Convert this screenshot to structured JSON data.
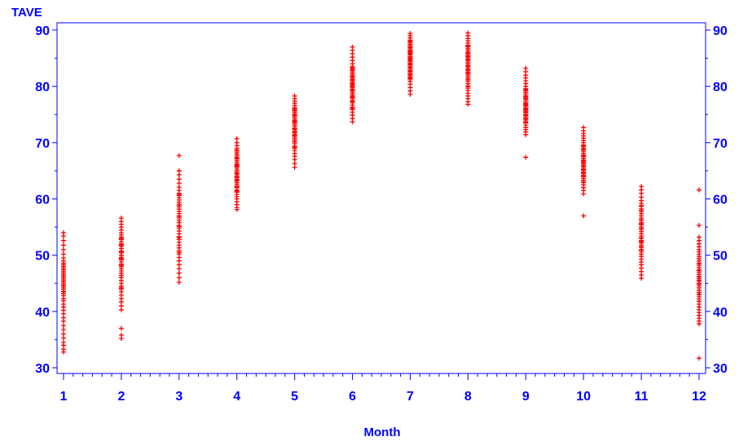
{
  "chart_data": {
    "type": "scatter",
    "title": "",
    "xlabel": "Month",
    "ylabel": "TAVE",
    "xlim": [
      1,
      12
    ],
    "ylim": [
      30,
      90
    ],
    "x_ticks": [
      1,
      2,
      3,
      4,
      5,
      6,
      7,
      8,
      9,
      10,
      11,
      12
    ],
    "y_ticks": [
      30,
      40,
      50,
      60,
      70,
      80,
      90
    ],
    "grid": false,
    "legend": "none",
    "marker": "plus",
    "colors": {
      "axis": "#0000ff",
      "points": "#ff0000"
    },
    "series": [
      {
        "x": [
          1,
          1,
          1,
          1,
          1,
          1,
          1,
          1,
          1,
          1,
          1,
          1,
          1,
          1,
          1,
          1,
          1,
          1,
          1,
          1,
          1,
          1,
          1,
          1,
          1,
          1,
          1,
          1,
          1,
          1,
          1,
          1,
          1,
          1,
          1,
          1,
          1,
          1,
          1,
          1,
          1,
          1,
          1,
          1,
          1
        ],
        "y": [
          32.8,
          33.3,
          34.0,
          34.5,
          35.3,
          36.0,
          36.8,
          37.5,
          38.3,
          38.9,
          39.6,
          40.2,
          40.8,
          41.3,
          41.9,
          42.3,
          42.8,
          43.2,
          43.6,
          44.0,
          44.3,
          44.7,
          45.0,
          45.3,
          45.6,
          45.9,
          46.2,
          46.5,
          46.8,
          47.1,
          47.4,
          47.7,
          48.0,
          48.3,
          48.6,
          49.0,
          49.5,
          50.2,
          51.0,
          51.8,
          52.6,
          53.4,
          54.0,
          43.5,
          44.6
        ]
      },
      {
        "x": [
          2,
          2,
          2,
          2,
          2,
          2,
          2,
          2,
          2,
          2,
          2,
          2,
          2,
          2,
          2,
          2,
          2,
          2,
          2,
          2,
          2,
          2,
          2,
          2,
          2,
          2,
          2,
          2,
          2,
          2,
          2,
          2,
          2,
          2,
          2,
          2,
          2,
          2,
          2,
          2,
          2,
          2,
          2,
          2,
          2
        ],
        "y": [
          35.2,
          35.8,
          37.0,
          40.3,
          41.0,
          41.7,
          42.3,
          42.9,
          43.5,
          44.0,
          44.5,
          45.0,
          45.5,
          46.0,
          46.4,
          46.8,
          47.2,
          47.6,
          48.0,
          48.4,
          48.8,
          49.2,
          49.6,
          50.0,
          50.4,
          50.8,
          51.2,
          51.6,
          52.0,
          52.4,
          52.8,
          53.2,
          53.6,
          54.0,
          54.5,
          55.0,
          55.5,
          56.0,
          56.6,
          48.2,
          49.4,
          50.6,
          51.8,
          53.0,
          44.2
        ]
      },
      {
        "x": [
          3,
          3,
          3,
          3,
          3,
          3,
          3,
          3,
          3,
          3,
          3,
          3,
          3,
          3,
          3,
          3,
          3,
          3,
          3,
          3,
          3,
          3,
          3,
          3,
          3,
          3,
          3,
          3,
          3,
          3,
          3,
          3,
          3,
          3,
          3,
          3,
          3,
          3,
          3,
          3,
          3,
          3,
          3,
          3,
          3
        ],
        "y": [
          45.2,
          46.0,
          46.8,
          47.6,
          48.3,
          49.0,
          49.6,
          50.2,
          50.8,
          51.3,
          51.8,
          52.3,
          52.8,
          53.3,
          53.8,
          54.3,
          54.8,
          55.3,
          55.8,
          56.2,
          56.6,
          57.0,
          57.4,
          57.8,
          58.2,
          58.6,
          59.0,
          59.4,
          59.8,
          60.2,
          60.6,
          61.0,
          61.5,
          62.1,
          62.8,
          63.5,
          64.3,
          65.0,
          67.7,
          53.1,
          55.1,
          56.9,
          58.9,
          60.8,
          50.5
        ]
      },
      {
        "x": [
          4,
          4,
          4,
          4,
          4,
          4,
          4,
          4,
          4,
          4,
          4,
          4,
          4,
          4,
          4,
          4,
          4,
          4,
          4,
          4,
          4,
          4,
          4,
          4,
          4,
          4,
          4,
          4,
          4,
          4,
          4,
          4,
          4,
          4,
          4,
          4,
          4,
          4,
          4,
          4,
          4,
          4,
          4,
          4,
          4
        ],
        "y": [
          58.1,
          58.5,
          59.0,
          59.5,
          60.0,
          60.4,
          60.8,
          61.2,
          61.6,
          62.0,
          62.3,
          62.6,
          62.9,
          63.2,
          63.5,
          63.8,
          64.1,
          64.4,
          64.7,
          65.0,
          65.3,
          65.6,
          65.9,
          66.2,
          66.5,
          66.8,
          67.1,
          67.4,
          67.7,
          68.0,
          68.3,
          68.6,
          69.0,
          69.5,
          70.0,
          70.7,
          62.1,
          63.3,
          64.6,
          65.8,
          67.2,
          61.4,
          63.9,
          66.1,
          68.7
        ]
      },
      {
        "x": [
          5,
          5,
          5,
          5,
          5,
          5,
          5,
          5,
          5,
          5,
          5,
          5,
          5,
          5,
          5,
          5,
          5,
          5,
          5,
          5,
          5,
          5,
          5,
          5,
          5,
          5,
          5,
          5,
          5,
          5,
          5,
          5,
          5,
          5,
          5,
          5,
          5,
          5,
          5,
          5,
          5,
          5,
          5,
          5,
          5
        ],
        "y": [
          65.6,
          66.3,
          67.0,
          67.6,
          68.1,
          68.6,
          69.0,
          69.4,
          69.8,
          70.2,
          70.5,
          70.8,
          71.1,
          71.4,
          71.7,
          72.0,
          72.3,
          72.6,
          72.9,
          73.2,
          73.5,
          73.8,
          74.1,
          74.4,
          74.7,
          75.0,
          75.3,
          75.6,
          75.9,
          76.2,
          76.6,
          77.0,
          77.4,
          77.8,
          78.3,
          70.1,
          71.3,
          72.5,
          73.7,
          74.9,
          76.1,
          69.2,
          71.9,
          73.9,
          75.7
        ]
      },
      {
        "x": [
          6,
          6,
          6,
          6,
          6,
          6,
          6,
          6,
          6,
          6,
          6,
          6,
          6,
          6,
          6,
          6,
          6,
          6,
          6,
          6,
          6,
          6,
          6,
          6,
          6,
          6,
          6,
          6,
          6,
          6,
          6,
          6,
          6,
          6,
          6,
          6,
          6,
          6,
          6,
          6,
          6,
          6,
          6,
          6,
          6
        ],
        "y": [
          73.7,
          74.3,
          74.9,
          75.4,
          75.9,
          76.3,
          76.7,
          77.1,
          77.5,
          77.9,
          78.3,
          78.6,
          78.9,
          79.2,
          79.5,
          79.8,
          80.1,
          80.4,
          80.7,
          81.0,
          81.3,
          81.6,
          81.9,
          82.2,
          82.5,
          82.8,
          83.1,
          83.5,
          84.0,
          84.6,
          85.2,
          85.8,
          86.4,
          87.0,
          78.1,
          79.4,
          80.6,
          81.8,
          82.9,
          77.3,
          79.9,
          81.2,
          83.3,
          76.1,
          80.3
        ]
      },
      {
        "x": [
          7,
          7,
          7,
          7,
          7,
          7,
          7,
          7,
          7,
          7,
          7,
          7,
          7,
          7,
          7,
          7,
          7,
          7,
          7,
          7,
          7,
          7,
          7,
          7,
          7,
          7,
          7,
          7,
          7,
          7,
          7,
          7,
          7,
          7,
          7,
          7,
          7,
          7,
          7,
          7,
          7,
          7,
          7,
          7,
          7
        ],
        "y": [
          78.6,
          79.2,
          79.8,
          80.4,
          80.9,
          81.3,
          81.7,
          82.0,
          82.3,
          82.6,
          82.9,
          83.2,
          83.5,
          83.8,
          84.1,
          84.4,
          84.7,
          85.0,
          85.3,
          85.6,
          85.9,
          86.2,
          86.5,
          86.8,
          87.1,
          87.4,
          87.8,
          88.2,
          88.6,
          89.0,
          89.4,
          82.1,
          83.3,
          84.5,
          85.7,
          86.9,
          81.5,
          83.9,
          85.1,
          86.3,
          87.5,
          84.9,
          82.8,
          86.0,
          88.0
        ]
      },
      {
        "x": [
          8,
          8,
          8,
          8,
          8,
          8,
          8,
          8,
          8,
          8,
          8,
          8,
          8,
          8,
          8,
          8,
          8,
          8,
          8,
          8,
          8,
          8,
          8,
          8,
          8,
          8,
          8,
          8,
          8,
          8,
          8,
          8,
          8,
          8,
          8,
          8,
          8,
          8,
          8,
          8,
          8,
          8,
          8,
          8,
          8
        ],
        "y": [
          76.8,
          77.3,
          77.8,
          78.3,
          78.8,
          79.3,
          79.7,
          80.1,
          80.5,
          80.9,
          81.3,
          81.6,
          81.9,
          82.2,
          82.5,
          82.8,
          83.1,
          83.4,
          83.7,
          84.0,
          84.3,
          84.6,
          84.9,
          85.2,
          85.5,
          85.8,
          86.1,
          86.4,
          86.7,
          87.0,
          87.3,
          87.7,
          88.1,
          88.5,
          89.0,
          89.5,
          81.2,
          82.4,
          83.6,
          84.8,
          86.0,
          87.2,
          80.0,
          83.0,
          85.4
        ]
      },
      {
        "x": [
          9,
          9,
          9,
          9,
          9,
          9,
          9,
          9,
          9,
          9,
          9,
          9,
          9,
          9,
          9,
          9,
          9,
          9,
          9,
          9,
          9,
          9,
          9,
          9,
          9,
          9,
          9,
          9,
          9,
          9,
          9,
          9,
          9,
          9,
          9,
          9,
          9,
          9,
          9,
          9,
          9,
          9,
          9,
          9,
          9
        ],
        "y": [
          67.4,
          71.4,
          71.9,
          72.3,
          72.7,
          73.1,
          73.5,
          73.8,
          74.1,
          74.4,
          74.7,
          75.0,
          75.3,
          75.6,
          75.9,
          76.2,
          76.5,
          76.8,
          77.1,
          77.4,
          77.7,
          78.0,
          78.3,
          78.6,
          78.9,
          79.2,
          79.6,
          80.0,
          80.5,
          81.0,
          81.5,
          82.0,
          82.6,
          83.2,
          74.2,
          75.4,
          76.6,
          77.8,
          73.6,
          75.8,
          77.0,
          78.2,
          76.0,
          74.9,
          79.4
        ]
      },
      {
        "x": [
          10,
          10,
          10,
          10,
          10,
          10,
          10,
          10,
          10,
          10,
          10,
          10,
          10,
          10,
          10,
          10,
          10,
          10,
          10,
          10,
          10,
          10,
          10,
          10,
          10,
          10,
          10,
          10,
          10,
          10,
          10,
          10,
          10,
          10,
          10,
          10,
          10,
          10,
          10,
          10,
          10,
          10,
          10,
          10,
          10
        ],
        "y": [
          57.0,
          60.9,
          61.5,
          62.0,
          62.5,
          62.9,
          63.3,
          63.6,
          63.9,
          64.2,
          64.5,
          64.8,
          65.1,
          65.4,
          65.7,
          66.0,
          66.3,
          66.6,
          66.9,
          67.2,
          67.5,
          67.8,
          68.1,
          68.4,
          68.7,
          69.0,
          69.3,
          69.6,
          70.0,
          70.4,
          70.8,
          71.2,
          71.6,
          72.1,
          72.7,
          63.0,
          64.0,
          65.2,
          66.4,
          67.6,
          68.8,
          64.6,
          66.8,
          69.4,
          65.9
        ]
      },
      {
        "x": [
          11,
          11,
          11,
          11,
          11,
          11,
          11,
          11,
          11,
          11,
          11,
          11,
          11,
          11,
          11,
          11,
          11,
          11,
          11,
          11,
          11,
          11,
          11,
          11,
          11,
          11,
          11,
          11,
          11,
          11,
          11,
          11,
          11,
          11,
          11,
          11,
          11,
          11,
          11,
          11,
          11,
          11,
          11,
          11,
          11
        ],
        "y": [
          45.9,
          46.5,
          47.1,
          47.7,
          48.3,
          48.8,
          49.3,
          49.8,
          50.2,
          50.6,
          51.0,
          51.4,
          51.8,
          52.2,
          52.6,
          53.0,
          53.4,
          53.8,
          54.2,
          54.6,
          55.0,
          55.4,
          55.8,
          56.2,
          56.6,
          57.0,
          57.4,
          57.8,
          58.2,
          58.7,
          59.2,
          59.7,
          60.3,
          61.0,
          61.6,
          62.2,
          51.5,
          53.1,
          54.7,
          56.3,
          57.9,
          52.4,
          55.6,
          58.8,
          50.9
        ]
      },
      {
        "x": [
          12,
          12,
          12,
          12,
          12,
          12,
          12,
          12,
          12,
          12,
          12,
          12,
          12,
          12,
          12,
          12,
          12,
          12,
          12,
          12,
          12,
          12,
          12,
          12,
          12,
          12,
          12,
          12,
          12,
          12,
          12,
          12,
          12,
          12,
          12,
          12,
          12,
          12,
          12,
          12,
          12,
          12,
          12,
          12,
          12
        ],
        "y": [
          31.7,
          37.8,
          38.3,
          38.8,
          39.3,
          39.8,
          40.3,
          40.8,
          41.3,
          41.8,
          42.2,
          42.6,
          43.0,
          43.4,
          43.8,
          44.2,
          44.6,
          45.0,
          45.4,
          45.8,
          46.2,
          46.6,
          47.0,
          47.4,
          47.8,
          48.2,
          48.6,
          49.0,
          49.4,
          49.8,
          50.2,
          50.6,
          51.0,
          51.5,
          52.0,
          52.6,
          53.2,
          55.3,
          61.6,
          44.9,
          46.1,
          47.3,
          48.5,
          43.1,
          45.5
        ]
      }
    ]
  }
}
